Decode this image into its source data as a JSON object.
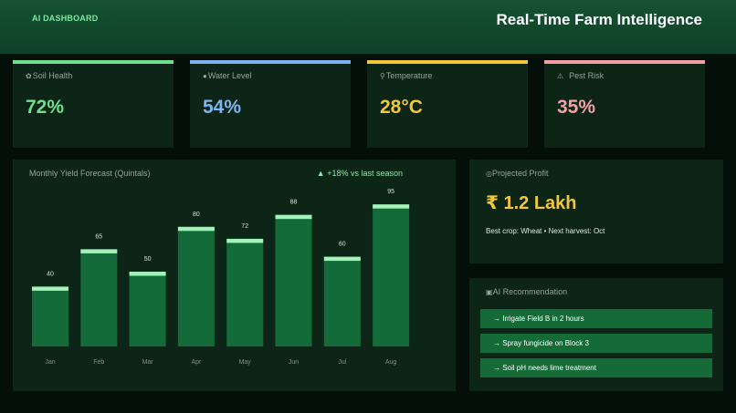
{
  "header": {
    "brand": "AI DASHBOARD",
    "title": "Real-Time Farm Intelligence"
  },
  "kpis": [
    {
      "label": "Soil Health",
      "value": "72%",
      "color": "#6fe08f",
      "icon": "soil-icon"
    },
    {
      "label": "Water Level",
      "value": "54%",
      "color": "#7fb3ef",
      "icon": "water-drop-icon"
    },
    {
      "label": "Temperature",
      "value": "28°C",
      "color": "#f2c83a",
      "icon": "thermometer-icon"
    },
    {
      "label": "Pest Risk",
      "value": "35%",
      "color": "#f2a0a6",
      "icon": "warning-icon"
    }
  ],
  "chart": {
    "trend": "▲ +18% vs last season"
  },
  "chart_data": {
    "type": "bar",
    "title": "Monthly Yield Forecast (Quintals)",
    "categories": [
      "Jan",
      "Feb",
      "Mar",
      "Apr",
      "May",
      "Jun",
      "Jul",
      "Aug"
    ],
    "values": [
      40,
      65,
      50,
      80,
      72,
      88,
      60,
      95
    ],
    "ylim": [
      0,
      100
    ],
    "grid": false,
    "legend": "none",
    "bar_color": "#146b3a",
    "cap_color": "#a2f3b9"
  },
  "profit": {
    "label": "Projected Profit",
    "value": "₹ 1.2 Lakh",
    "meta": "Best crop: Wheat  •  Next harvest: Oct"
  },
  "recommendations": {
    "label": "AI Recommendation",
    "items": [
      "→  Irrigate Field B in 2 hours",
      "→  Spray fungicide on Block 3",
      "→  Soil pH needs lime treatment"
    ]
  }
}
